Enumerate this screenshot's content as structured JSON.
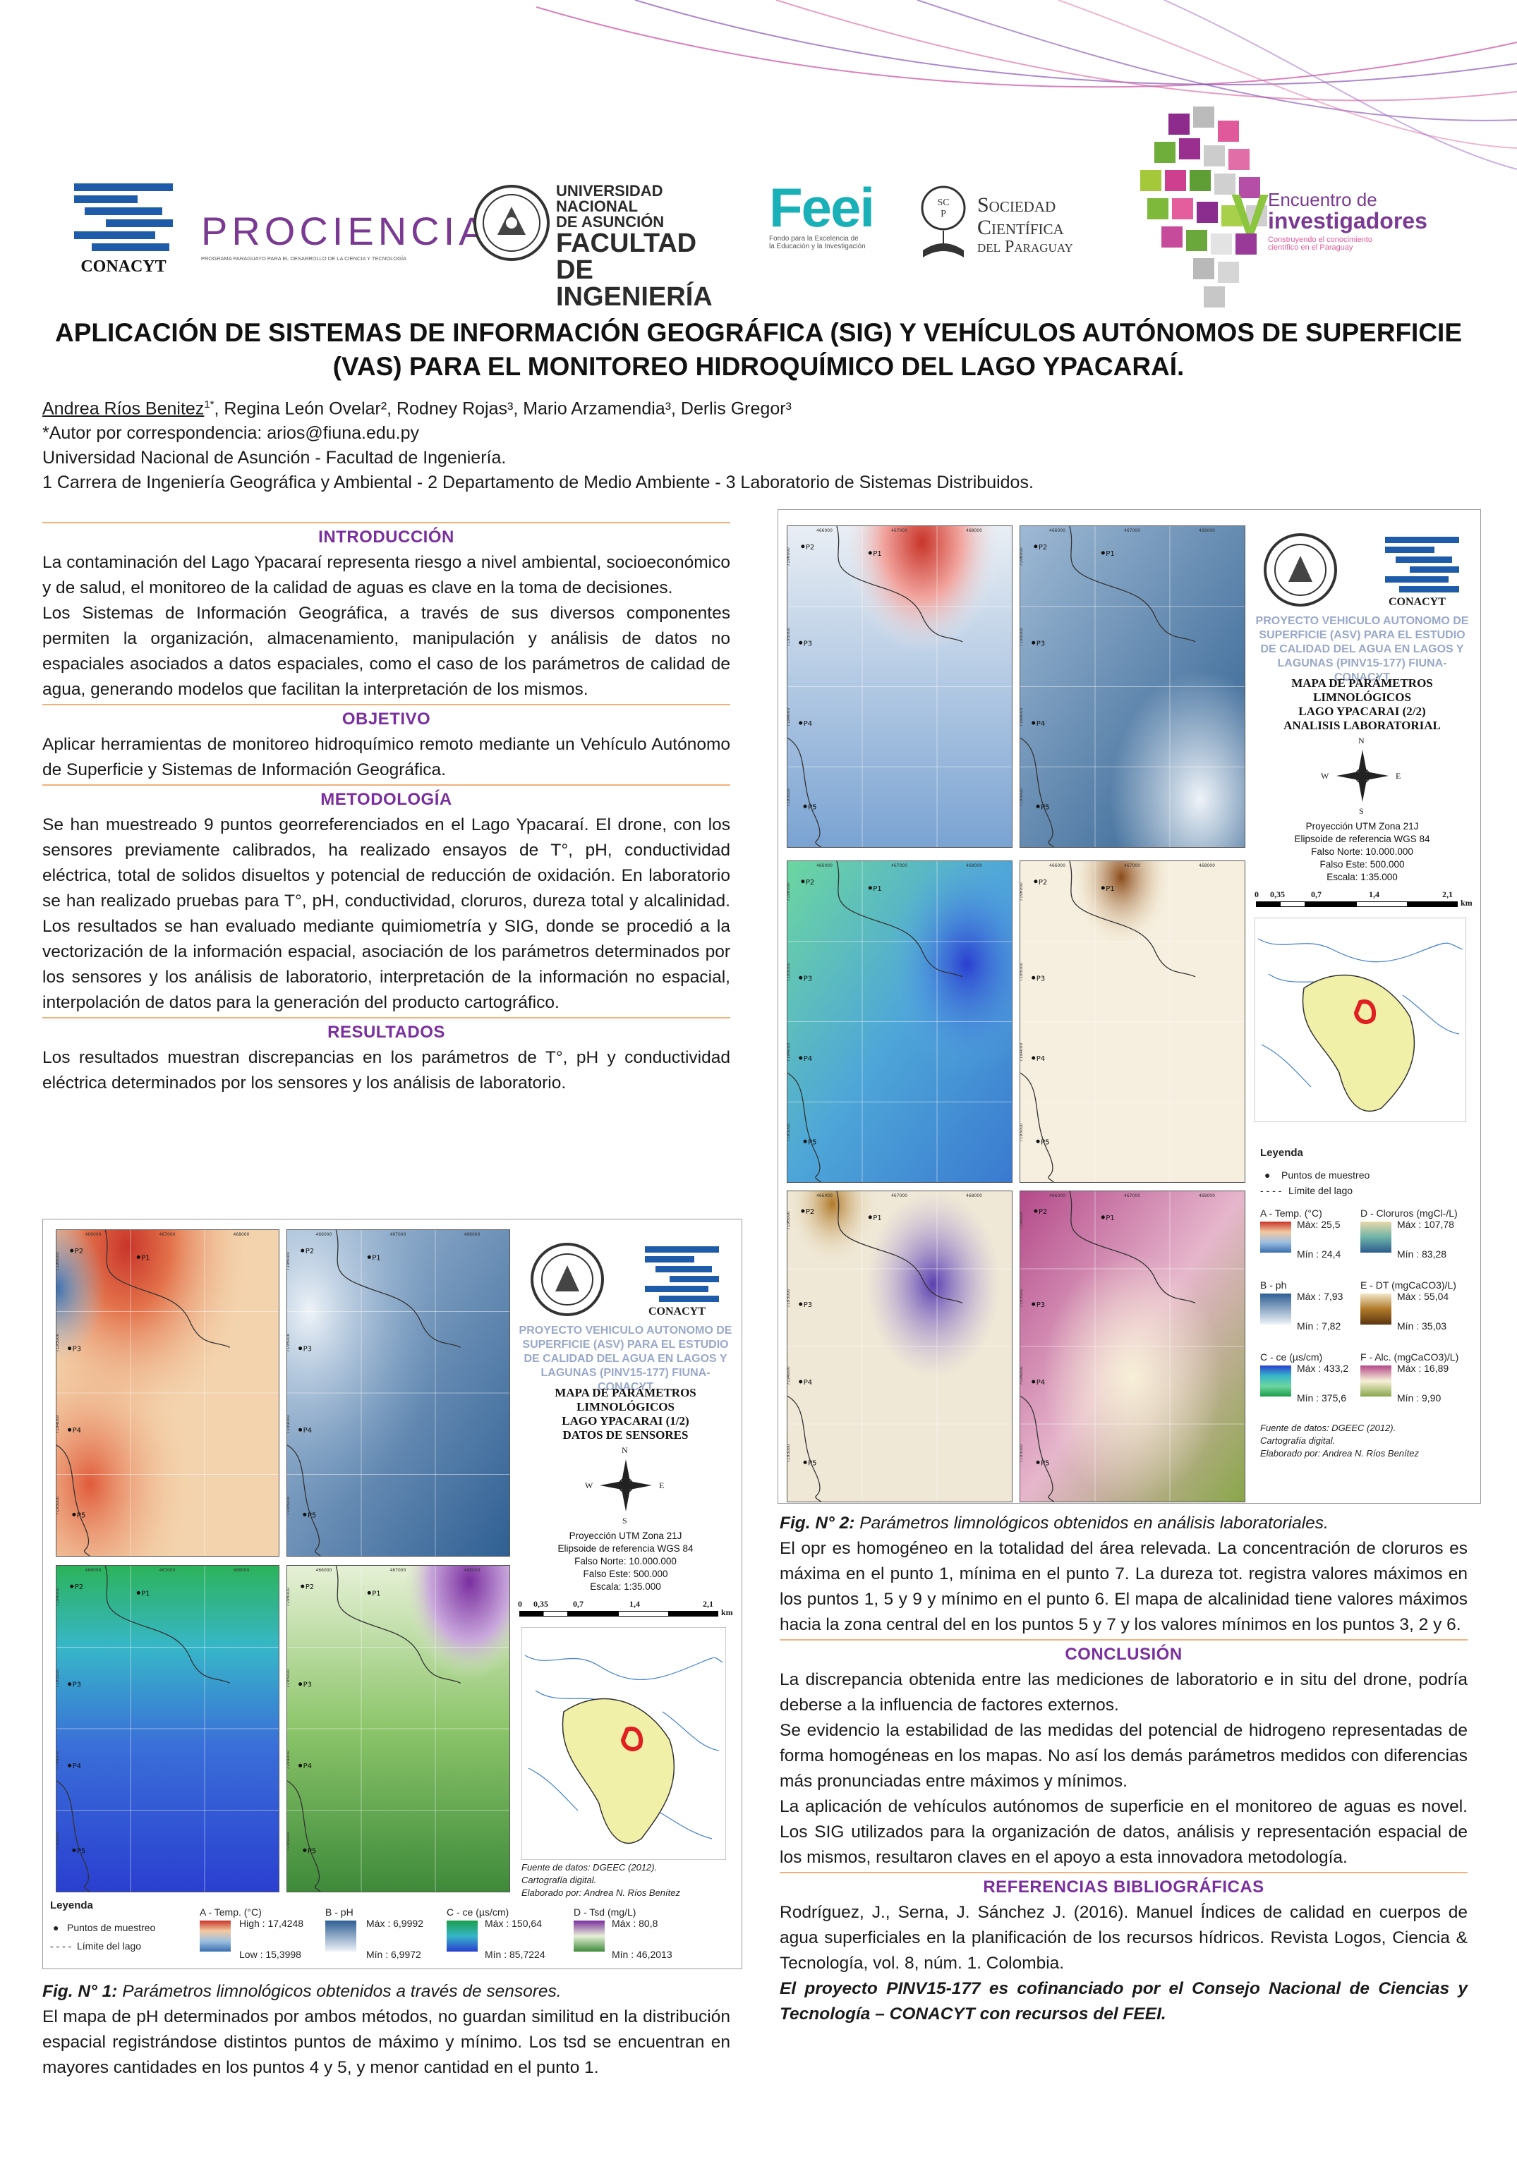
{
  "logos": {
    "conacyt": "CONACYT",
    "prociencia": "PROCIENCIA",
    "prociencia_sub": "PROGRAMA PARAGUAYO PARA EL DESARROLLO DE LA CIENCIA Y TECNOLOGÍA",
    "una_line1": "UNIVERSIDAD NACIONAL",
    "una_line2": "DE ASUNCIÓN",
    "una_line3": "FACULTAD DE",
    "una_line4": "INGENIERÍA",
    "feei": "Feei",
    "feei_sub1": "Fondo para la Excelencia de",
    "feei_sub2": "la Educación y la Investigación",
    "scp_line1": "Sociedad",
    "scp_line2": "Científica",
    "scp_line3": "del Paraguay",
    "encuentro_num": "V",
    "encuentro_line1": "Encuentro de",
    "encuentro_line2": "investigadores",
    "encuentro_sub1": "Construyendo el conocimiento",
    "encuentro_sub2": "científico en el Paraguay"
  },
  "title": {
    "line1": "APLICACIÓN DE SISTEMAS DE INFORMACIÓN GEOGRÁFICA (SIG) Y VEHÍCULOS AUTÓNOMOS DE SUPERFICIE",
    "line2": "(VAS) PARA EL MONITOREO HIDROQUÍMICO DEL LAGO YPACARAÍ."
  },
  "authors": {
    "first": "Andrea Ríos Benitez",
    "first_sup": "1*",
    "rest": ", Regina León Ovelar², Rodney Rojas³, Mario Arzamendia³, Derlis Gregor³",
    "corresponding": "*Autor por correspondencia: arios@fiuna.edu.py",
    "institution": "Universidad Nacional de Asunción - Facultad de Ingeniería.",
    "affiliations": "1 Carrera de Ingeniería Geográfica y Ambiental - 2 Departamento de Medio Ambiente - 3 Laboratorio de Sistemas Distribuidos."
  },
  "intro": {
    "heading": "INTRODUCCIÓN",
    "p1": "La contaminación del Lago Ypacaraí representa riesgo a nivel ambiental, socioeconómico y de salud, el monitoreo de la calidad de aguas es clave en la toma de decisiones.",
    "p2": "Los Sistemas de Información Geográfica, a través de sus diversos componentes permiten la organización, almacenamiento, manipulación y análisis de datos no espaciales asociados a datos espaciales, como el caso de los parámetros de calidad de agua, generando modelos que facilitan la interpretación de los mismos."
  },
  "objetivo": {
    "heading": "OBJETIVO",
    "p1": "Aplicar herramientas de monitoreo hidroquímico remoto mediante un Vehículo Autónomo de Superficie y Sistemas de Información Geográfica."
  },
  "metodologia": {
    "heading": "METODOLOGÍA",
    "p1": "Se han muestreado 9 puntos georreferenciados en el Lago Ypacaraí. El drone, con los sensores previamente calibrados, ha realizado ensayos de T°, pH, conductividad eléctrica, total de solidos disueltos y potencial de reducción de oxidación. En laboratorio se han realizado pruebas para T°, pH, conductividad, cloruros, dureza total y alcalinidad. Los resultados se han evaluado mediante quimiometría y SIG, donde se procedió a la vectorización de la información espacial, asociación de los parámetros determinados por los sensores y los análisis de laboratorio, interpretación de la información no espacial, interpolación de datos para la generación del producto cartográfico."
  },
  "resultados": {
    "heading": "RESULTADOS",
    "p1": "Los resultados muestran discrepancias en los parámetros de T°, pH y conductividad eléctrica determinados por los sensores y los análisis de laboratorio."
  },
  "fig1": {
    "caption_label": "Fig. N° 1:",
    "caption_text": " Parámetros limnológicos obtenidos a través de sensores.",
    "after": "El mapa de pH determinados por ambos métodos, no guardan similitud en la distribución espacial registrándose distintos puntos de máximo y mínimo. Los tsd se encuentran en mayores cantidades en los puntos 4 y 5, y menor cantidad en el punto 1.",
    "project_title": "PROYECTO VEHICULO AUTONOMO DE SUPERFICIE (ASV) PARA EL ESTUDIO DE CALIDAD DEL AGUA EN LAGOS Y LAGUNAS (PINV15-177) FIUNA-CONACYT",
    "map_title1": "MAPA DE PARÁMETROS",
    "map_title2": "LIMNOLÓGICOS",
    "map_title3": "LAGO YPACARAI (1/2)",
    "map_title4": "DATOS DE SENSORES",
    "proj1": "Proyección UTM Zona 21J",
    "proj2": "Elipsoide de referencia WGS 84",
    "proj3": "Falso Norte: 10.000.000",
    "proj4": "Falso Este: 500.000",
    "proj5": "Escala: 1:35.000",
    "scale": [
      "0",
      "0,35",
      "0,7",
      "1,4",
      "2,1"
    ],
    "scale_unit": "km",
    "source1": "Fuente de datos: DGEEC (2012).",
    "source2": "Cartografía digital.",
    "source3": "Elaborado por: Andrea N. Ríos Benítez",
    "legend_title": "Leyenda",
    "legend_points": "Puntos de muestreo",
    "legend_limit": "Límite del lago",
    "leg_a": "A - Temp. (°C)",
    "leg_a_max": "High : 17,4248",
    "leg_a_min": "Low : 15,3998",
    "leg_b": "B - pH",
    "leg_b_max": "Máx : 6,9992",
    "leg_b_min": "Mín : 6,9972",
    "leg_c": "C - ce (µs/cm)",
    "leg_c_max": "Máx : 150,64",
    "leg_c_min": "Mín : 85,7224",
    "leg_d": "D - Tsd (mg/L)",
    "leg_d_max": "Máx : 80,8",
    "leg_d_min": "Mín : 46,2013",
    "conacyt": "CONACYT"
  },
  "fig2": {
    "caption_label": "Fig. N° 2:",
    "caption_text": " Parámetros limnológicos obtenidos en análisis laboratoriales.",
    "after": "El opr es homogéneo en la totalidad del área relevada. La concentración de cloruros es máxima en el punto 1, mínima en el punto 7. La dureza tot. registra valores máximos en los puntos 1, 5 y 9 y mínimo en el punto 6. El mapa de alcalinidad tiene valores máximos hacia la zona central del en los puntos 5 y 7 y los valores mínimos en los puntos 3, 2 y 6.",
    "project_title": "PROYECTO VEHICULO AUTONOMO DE SUPERFICIE (ASV) PARA EL ESTUDIO DE CALIDAD DEL AGUA EN LAGOS Y LAGUNAS (PINV15-177) FIUNA-CONACYT",
    "map_title1": "MAPA DE PARÁMETROS",
    "map_title2": "LIMNOLÓGICOS",
    "map_title3": "LAGO YPACARAI (2/2)",
    "map_title4": "ANALISIS LABORATORIAL",
    "proj1": "Proyección UTM Zona 21J",
    "proj2": "Elipsoide de referencia WGS 84",
    "proj3": "Falso Norte: 10.000.000",
    "proj4": "Falso Este: 500.000",
    "proj5": "Escala: 1:35.000",
    "scale": [
      "0",
      "0,35",
      "0,7",
      "1,4",
      "2,1"
    ],
    "scale_unit": "km",
    "legend_title": "Leyenda",
    "legend_points": "Puntos de muestreo",
    "legend_limit": "Límite del lago",
    "leg_a": "A - Temp. (°C)",
    "leg_a_max": "Máx: 25,5",
    "leg_a_min": "Mín : 24,4",
    "leg_d": "D - Cloruros (mgCl-/L)",
    "leg_d_max": "Máx : 107,78",
    "leg_d_min": "Mín : 83,28",
    "leg_b": "B - ph",
    "leg_b_max": "Máx : 7,93",
    "leg_b_min": "Mín : 7,82",
    "leg_e": "E - DT (mgCaCO3)/L)",
    "leg_e_max": "Máx : 55,04",
    "leg_e_min": "Mín : 35,03",
    "leg_c": "C - ce (µs/cm)",
    "leg_c_max": "Máx : 433,2",
    "leg_c_min": "Mín : 375,6",
    "leg_f": "F - Alc. (mgCaCO3)/L)",
    "leg_f_max": "Máx : 16,89",
    "leg_f_min": "Mín : 9,90",
    "source1": "Fuente de datos: DGEEC (2012).",
    "source2": "Cartografía digital.",
    "source3": "Elaborado por: Andrea N. Ríos Benítez",
    "conacyt": "CONACYT"
  },
  "compass": {
    "n": "N",
    "s": "S",
    "e": "E",
    "w": "W"
  },
  "conclusion": {
    "heading": "CONCLUSIÓN",
    "p1": "La discrepancia obtenida entre las mediciones de laboratorio e in situ del drone, podría deberse a la influencia de factores externos.",
    "p2": "Se evidencio la estabilidad de las medidas del potencial de hidrogeno representadas de forma homogéneas en los mapas. No así los demás parámetros medidos con diferencias más pronunciadas entre máximos y mínimos.",
    "p3": "La aplicación de vehículos autónomos de superficie en el monitoreo de aguas es novel. Los SIG utilizados para la organización de datos, análisis y representación espacial de los mismos, resultaron claves en el apoyo a esta innovadora metodología."
  },
  "referencias": {
    "heading": "REFERENCIAS BIBLIOGRÁFICAS",
    "p1": "Rodríguez, J., Serna, J. Sánchez J. (2016). Manuel Índices de calidad en cuerpos de agua superficiales en la planificación de los recursos hídricos. Revista Logos, Ciencia & Tecnología, vol. 8, núm. 1. Colombia.",
    "funding": "El proyecto PINV15-177 es cofinanciado por el Consejo Nacional de Ciencias y Tecnología – CONACYT con recursos del FEEI."
  },
  "maps": {
    "points": [
      "P1",
      "P2",
      "P3",
      "P4",
      "P5"
    ],
    "tick_e": [
      "466000",
      "467000",
      "468000"
    ],
    "tick_n": [
      "7196000",
      "7195000",
      "7194000",
      "7193000"
    ]
  },
  "colors": {
    "heading": "#7a2f9e",
    "rule": "#f0b27a",
    "temp_high": "#c8352a",
    "temp_low": "#3a6fb0",
    "ph_high": "#2f5f93",
    "ph_low": "#eef3f8",
    "ce_high": "#1a9e4a",
    "ce_low": "#2a3fd0",
    "tsd_high": "#7b2fa0",
    "tsd_low": "#3e8a3a"
  }
}
